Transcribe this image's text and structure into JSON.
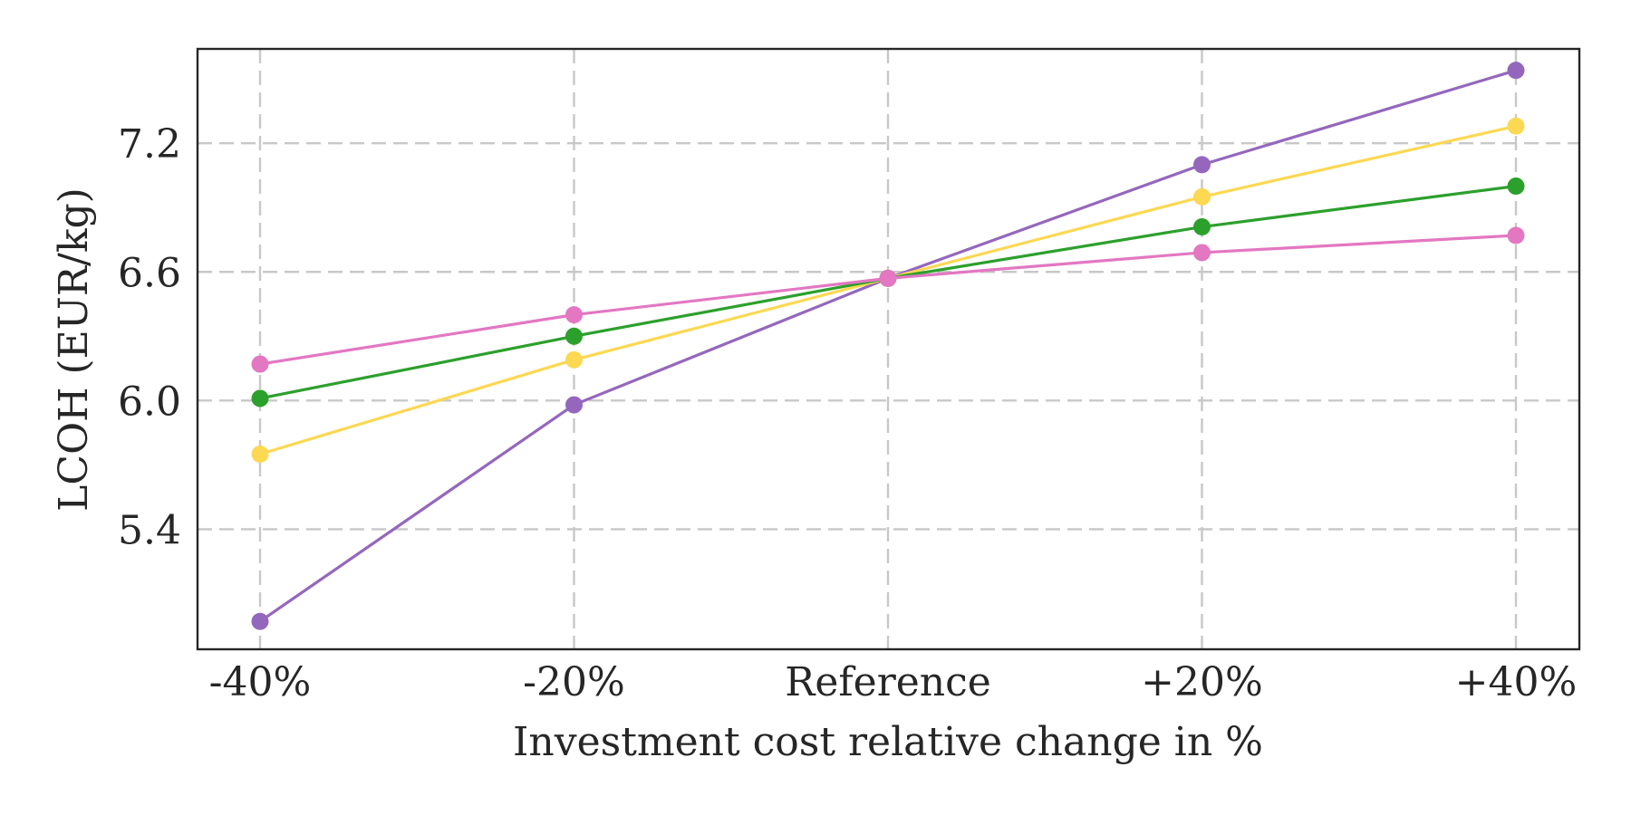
{
  "chart_data": {
    "type": "line",
    "title": "",
    "xlabel": "Investment cost relative change in %",
    "ylabel": "LCOH (EUR/kg)",
    "categories": [
      "-40%",
      "-20%",
      "Reference",
      "+20%",
      "+40%"
    ],
    "yticks": [
      5.4,
      6.0,
      6.6,
      7.2
    ],
    "ytick_labels": [
      "5.4",
      "6.0",
      "6.6",
      "7.2"
    ],
    "ylim": [
      4.84,
      7.64
    ],
    "grid": true,
    "legend": "none",
    "series": [
      {
        "color": "#9467bd",
        "values": [
          4.97,
          5.98,
          6.57,
          7.1,
          7.54
        ]
      },
      {
        "color": "#fcd853",
        "values": [
          5.75,
          6.19,
          6.57,
          6.95,
          7.28
        ]
      },
      {
        "color": "#2ca02c",
        "values": [
          6.01,
          6.3,
          6.57,
          6.81,
          7.0
        ]
      },
      {
        "color": "#e377c2",
        "values": [
          6.17,
          6.4,
          6.57,
          6.69,
          6.77
        ]
      }
    ]
  }
}
